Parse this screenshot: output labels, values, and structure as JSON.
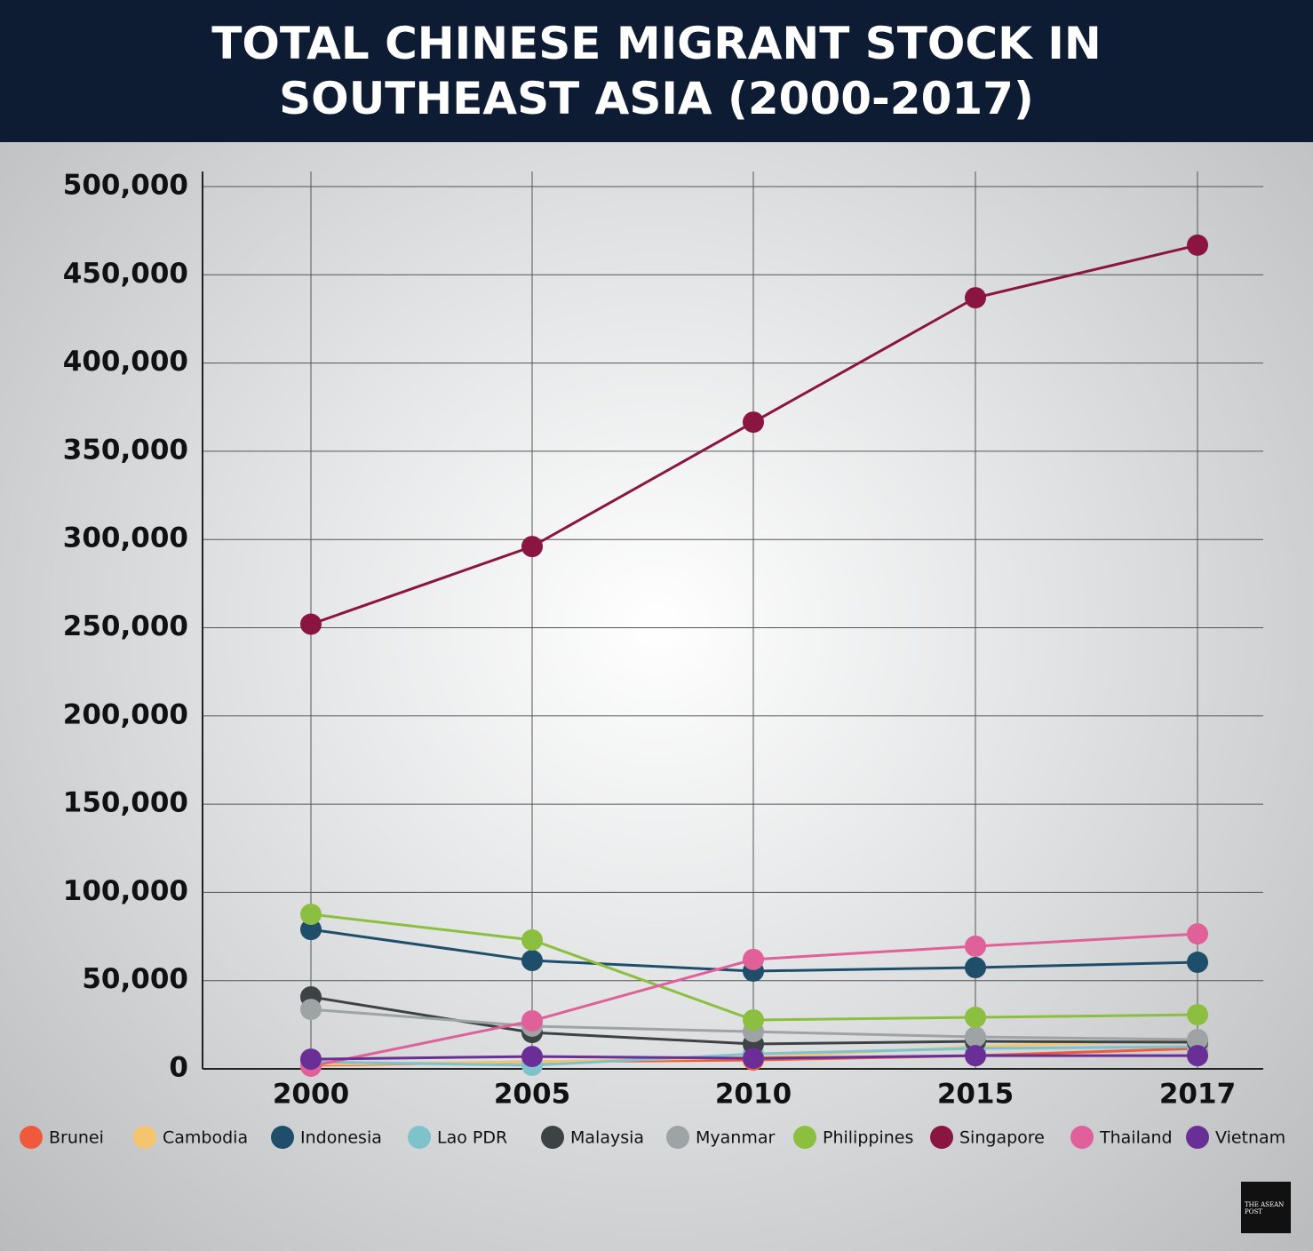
{
  "chart_data": {
    "type": "line",
    "title": "TOTAL CHINESE MIGRANT STOCK IN SOUTHEAST ASIA (2000-2017)",
    "categories": [
      "2000",
      "2005",
      "2010",
      "2015",
      "2017"
    ],
    "ylim": [
      0,
      500000
    ],
    "yticks": [
      0,
      {
        "value": 50000,
        "label": "50,000"
      },
      {
        "value": 100000,
        "label": "100,000"
      },
      {
        "value": 150000,
        "label": "150,000"
      },
      {
        "value": 200000,
        "label": "200,000"
      },
      {
        "value": 250000,
        "label": "250,000"
      },
      {
        "value": 300000,
        "label": "300,000"
      },
      {
        "value": 350000,
        "label": "350,000"
      },
      {
        "value": 400000,
        "label": "400,000"
      },
      {
        "value": 450000,
        "label": "450,000"
      },
      {
        "value": 500000,
        "label": "500,000"
      }
    ],
    "grid": true,
    "series": [
      {
        "name": "Brunei",
        "color": "#f05a3c",
        "values": [
          2000,
          4000,
          5000,
          7500,
          11600
        ]
      },
      {
        "name": "Cambodia",
        "color": "#f5c46e",
        "values": [
          2500,
          4000,
          6500,
          12600,
          16600
        ]
      },
      {
        "name": "Indonesia",
        "color": "#1e4e6a",
        "values": [
          79000,
          61400,
          55400,
          57400,
          60400
        ]
      },
      {
        "name": "Lao PDR",
        "color": "#7ec3cc",
        "values": [
          4000,
          2000,
          8500,
          11600,
          12600
        ]
      },
      {
        "name": "Malaysia",
        "color": "#3d4345",
        "values": [
          40800,
          20600,
          14100,
          15600,
          15100
        ]
      },
      {
        "name": "Myanmar",
        "color": "#9ea3a6",
        "values": [
          33700,
          24200,
          21100,
          18100,
          16600
        ]
      },
      {
        "name": "Philippines",
        "color": "#8cbf3f",
        "values": [
          87600,
          73000,
          27700,
          29200,
          30700
        ]
      },
      {
        "name": "Singapore",
        "color": "#8a1540",
        "values": [
          252000,
          296000,
          366500,
          437000,
          466800
        ]
      },
      {
        "name": "Thailand",
        "color": "#e0609a",
        "values": [
          1500,
          27200,
          62000,
          69500,
          76500
        ]
      },
      {
        "name": "Vietnam",
        "color": "#6a2f96",
        "values": [
          5500,
          7000,
          6000,
          7500,
          7500
        ]
      }
    ]
  },
  "logo": "THE ASEAN POST"
}
